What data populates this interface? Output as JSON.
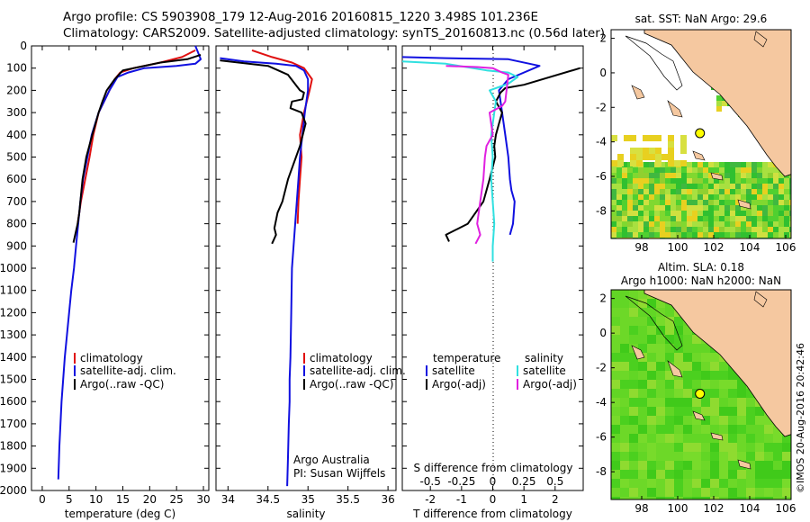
{
  "header": {
    "line1": "Argo profile: CS 5903908_179 12-Aug-2016 20160815_1220 3.498S 101.236E",
    "line2": "Climatology: CARS2009. Satellite-adjusted climatology: synTS_20160813.nc (0.56d later)"
  },
  "credit": "©IMOS 20-Aug-2016 20:42:46",
  "colors": {
    "climatology": "#e01010",
    "satellite": "#1010e0",
    "argo": "#000000",
    "satellite_salinity": "#30e0e0",
    "argo_salinity": "#e020e0",
    "land": "#f5c8a0"
  },
  "chart_data": [
    {
      "type": "line",
      "panel": "temperature",
      "xlabel": "temperature (deg C)",
      "xticks": [
        "0",
        "5",
        "10",
        "15",
        "20",
        "25",
        "30"
      ],
      "xlim": [
        -2,
        31
      ],
      "ylim": [
        2000,
        0
      ],
      "yticks": [
        "0",
        "100",
        "200",
        "300",
        "400",
        "500",
        "600",
        "700",
        "800",
        "900",
        "1000",
        "1100",
        "1200",
        "1300",
        "1400",
        "1500",
        "1600",
        "1700",
        "1800",
        "1900",
        "2000"
      ],
      "legend": [
        "climatology",
        "satellite-adj. clim.",
        "Argo(..raw -QC)"
      ],
      "series": [
        {
          "name": "climatology",
          "color": "climatology",
          "x": [
            28.5,
            26,
            22,
            17,
            14.5,
            13.5,
            12.5,
            11.5,
            10.5,
            9.5,
            8.8,
            8,
            7.6,
            7.2,
            6.9,
            6.6
          ],
          "y": [
            20,
            50,
            75,
            100,
            120,
            150,
            200,
            250,
            300,
            400,
            500,
            600,
            650,
            700,
            750,
            800
          ]
        },
        {
          "name": "satellite-adj. clim.",
          "color": "satellite",
          "x": [
            28.5,
            29,
            29.5,
            28.5,
            25,
            19,
            16,
            14,
            12.5,
            11.5,
            10.5,
            9.2,
            8.4,
            7.6,
            7.1,
            6.7,
            6.3,
            5.9,
            5.4,
            5,
            4.6,
            4.2,
            3.9,
            3.6,
            3.4,
            3.2,
            3
          ],
          "y": [
            0,
            30,
            60,
            80,
            90,
            100,
            120,
            140,
            200,
            250,
            300,
            400,
            500,
            600,
            700,
            800,
            900,
            1000,
            1100,
            1200,
            1300,
            1400,
            1500,
            1600,
            1700,
            1800,
            1950
          ]
        },
        {
          "name": "Argo(..raw -QC)",
          "color": "argo",
          "x": [
            29.5,
            27,
            22,
            18,
            15,
            13.5,
            12,
            11.2,
            10.5,
            9.3,
            8.2,
            7.5,
            7.1,
            6.9,
            6.6,
            5.8
          ],
          "y": [
            40,
            60,
            75,
            95,
            110,
            150,
            200,
            250,
            300,
            400,
            500,
            600,
            700,
            750,
            800,
            885
          ]
        }
      ]
    },
    {
      "type": "line",
      "panel": "salinity",
      "xlabel": "salinity",
      "xticks": [
        "34",
        "34.5",
        "35",
        "35.5",
        "36"
      ],
      "xlim": [
        33.85,
        36.1
      ],
      "ylim": [
        2000,
        0
      ],
      "legend": [
        "climatology",
        "satellite-adj. clim.",
        "Argo(..raw -QC)"
      ],
      "annotations": [
        "Argo Australia",
        "PI: Susan Wijffels"
      ],
      "series": [
        {
          "name": "climatology",
          "color": "climatology",
          "x": [
            34.3,
            34.55,
            34.8,
            34.95,
            35.05,
            35.02,
            34.95,
            34.9,
            34.92,
            34.9,
            34.88,
            34.87
          ],
          "y": [
            20,
            50,
            75,
            100,
            150,
            200,
            300,
            400,
            500,
            600,
            700,
            800
          ]
        },
        {
          "name": "satellite-adj. clim.",
          "color": "satellite",
          "x": [
            33.9,
            34.2,
            34.6,
            34.85,
            34.95,
            35.0,
            35.0,
            34.96,
            34.93,
            34.9,
            34.88,
            34.86,
            34.84,
            34.82,
            34.8,
            34.79,
            34.78,
            34.77,
            34.77,
            34.76,
            34.75,
            34.74
          ],
          "y": [
            55,
            70,
            80,
            90,
            110,
            150,
            200,
            300,
            400,
            500,
            600,
            700,
            800,
            900,
            1000,
            1200,
            1400,
            1500,
            1600,
            1700,
            1850,
            1980
          ]
        },
        {
          "name": "Argo(..raw -QC)",
          "color": "argo",
          "x": [
            33.9,
            34.5,
            34.75,
            34.9,
            34.95,
            34.93,
            34.8,
            34.78,
            34.92,
            34.97,
            34.9,
            34.85,
            34.75,
            34.68,
            34.62,
            34.58,
            34.6,
            34.55
          ],
          "y": [
            65,
            90,
            130,
            200,
            210,
            240,
            250,
            280,
            300,
            350,
            450,
            500,
            600,
            700,
            750,
            820,
            850,
            890
          ]
        }
      ]
    },
    {
      "type": "line",
      "panel": "difference",
      "xlabel": "T difference from climatology",
      "xlabel_top": "S difference from climatology",
      "xticks": [
        "-2",
        "-1",
        "0",
        "1",
        "2"
      ],
      "xticks_top": [
        "-0.5",
        "-0.25",
        "0",
        "0.25",
        "0.5"
      ],
      "xlim": [
        -2.9,
        2.9
      ],
      "ylim": [
        2000,
        0
      ],
      "legend_headers": [
        "temperature",
        "salinity"
      ],
      "legend": [
        "satellite",
        "Argo(-adj)",
        "satellite",
        "Argo(-adj)"
      ],
      "series": [
        {
          "name": "satellite",
          "quantity": "temperature",
          "color": "satellite",
          "x": [
            -3,
            -1.5,
            0.5,
            1.5,
            0.5,
            0.2,
            0.3,
            0.4,
            0.5,
            0.55,
            0.6,
            0.7,
            0.65,
            0.55
          ],
          "y": [
            50,
            55,
            60,
            90,
            150,
            200,
            300,
            400,
            500,
            600,
            650,
            700,
            800,
            850
          ]
        },
        {
          "name": "Argo(-adj)",
          "quantity": "temperature",
          "color": "argo",
          "x": [
            2.8,
            1,
            0.4,
            0.25,
            0.1,
            0.3,
            0.2,
            0.1,
            0.05,
            0.08,
            -0.1,
            -0.3,
            -0.8,
            -1.5,
            -1.4
          ],
          "y": [
            100,
            175,
            190,
            210,
            250,
            300,
            350,
            400,
            450,
            500,
            600,
            700,
            800,
            850,
            880
          ]
        },
        {
          "name": "satellite",
          "quantity": "salinity",
          "color": "satellite_salinity",
          "x": [
            -3,
            -1.5,
            -0.2,
            0.5,
            0.8,
            0.5,
            -0.1,
            0.1,
            0.05,
            -0.05,
            0.0,
            -0.05,
            0.0,
            0.05,
            0.0,
            0.0
          ],
          "y": [
            70,
            80,
            110,
            120,
            140,
            170,
            200,
            250,
            300,
            400,
            500,
            600,
            700,
            800,
            900,
            970
          ]
        },
        {
          "name": "Argo(-adj)",
          "quantity": "salinity",
          "color": "argo_salinity",
          "x": [
            -1.5,
            -0.5,
            0.0,
            0.3,
            0.5,
            0.4,
            0.3,
            -0.1,
            0.0,
            -0.2,
            -0.25,
            -0.3,
            -0.4,
            -0.5,
            -0.4,
            -0.55
          ],
          "y": [
            90,
            95,
            100,
            120,
            130,
            250,
            270,
            300,
            400,
            450,
            500,
            600,
            700,
            800,
            850,
            890
          ]
        }
      ]
    },
    {
      "type": "heatmap",
      "panel": "sst-map",
      "title": "sat. SST: NaN Argo: 29.6",
      "xticks": [
        "98",
        "100",
        "102",
        "104",
        "106"
      ],
      "yticks": [
        "2",
        "0",
        "-2",
        "-4",
        "-6",
        "-8"
      ],
      "xlim": [
        96.3,
        106.3
      ],
      "ylim": [
        -9.6,
        2.5
      ],
      "argo_position": {
        "lon": 101.236,
        "lat": -3.498
      }
    },
    {
      "type": "heatmap",
      "panel": "sla-map",
      "title": "Altim. SLA: 0.18",
      "title2": "Argo h1000: NaN h2000: NaN",
      "xticks": [
        "98",
        "100",
        "102",
        "104",
        "106"
      ],
      "yticks": [
        "2",
        "0",
        "-2",
        "-4",
        "-6",
        "-8"
      ],
      "xlim": [
        96.3,
        106.3
      ],
      "ylim": [
        -9.6,
        2.5
      ],
      "argo_position": {
        "lon": 101.236,
        "lat": -3.498
      }
    }
  ]
}
